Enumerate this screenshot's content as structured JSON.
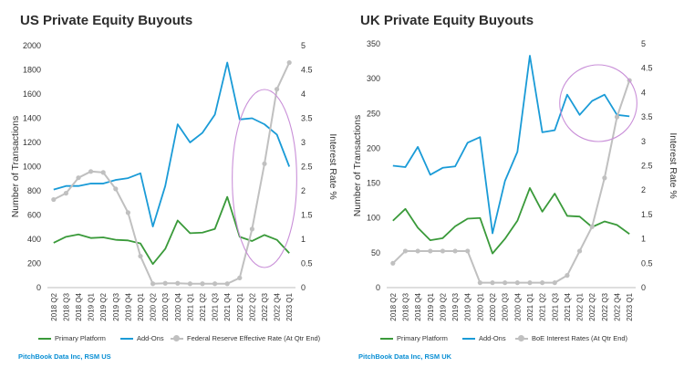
{
  "chart_data": [
    {
      "type": "line",
      "title": "US Private Equity Buyouts",
      "xlabel": "",
      "ylabel": "Number of Transactions",
      "ylabel_right": "Interest Rate %",
      "ylim": [
        0,
        2000
      ],
      "ylim_right": [
        0,
        5
      ],
      "yticks": [
        "0",
        "200",
        "400",
        "600",
        "800",
        "1000",
        "1200",
        "1400",
        "1600",
        "1800",
        "2000"
      ],
      "yticks_right": [
        "0",
        "0.5",
        "1",
        "1.5",
        "2",
        "2.5",
        "3",
        "3.5",
        "4",
        "4.5",
        "5"
      ],
      "categories": [
        "2018 Q2",
        "2018 Q3",
        "2018 Q4",
        "2019 Q1",
        "2019 Q2",
        "2019 Q3",
        "2019 Q4",
        "2020 Q1",
        "2020 Q2",
        "2020 Q3",
        "2020 Q4",
        "2021 Q1",
        "2021 Q2",
        "2021 Q3",
        "2021 Q4",
        "2022 Q1",
        "2022 Q2",
        "2022 Q3",
        "2022 Q4",
        "2023 Q1"
      ],
      "series": [
        {
          "name": "Primary Platform",
          "axis": "left",
          "color": "#3a9a3a",
          "marker": false,
          "values": [
            370,
            420,
            440,
            410,
            415,
            395,
            390,
            365,
            195,
            320,
            555,
            450,
            455,
            485,
            750,
            420,
            385,
            435,
            395,
            285
          ]
        },
        {
          "name": "Add-Ons",
          "axis": "left",
          "color": "#1a9bd7",
          "marker": false,
          "values": [
            810,
            840,
            840,
            860,
            860,
            890,
            905,
            945,
            505,
            840,
            1350,
            1200,
            1280,
            1430,
            1860,
            1390,
            1400,
            1350,
            1265,
            1000
          ]
        },
        {
          "name": "Federal Reserve Effective Rate (At Qtr End)",
          "axis": "right",
          "color": "#c0c0c0",
          "marker": true,
          "values": [
            1.82,
            1.95,
            2.27,
            2.4,
            2.38,
            2.04,
            1.55,
            0.65,
            0.08,
            0.09,
            0.09,
            0.08,
            0.08,
            0.08,
            0.08,
            0.2,
            1.21,
            2.56,
            4.1,
            4.65
          ]
        }
      ],
      "highlight_ellipse": {
        "color": "#c98fd8",
        "x_from": "2022 Q1",
        "x_to": "2023 Q1"
      },
      "source": "PitchBook Data Inc, RSM US"
    },
    {
      "type": "line",
      "title": "UK Private Equity Buyouts",
      "xlabel": "",
      "ylabel": "Number of Transactions",
      "ylabel_right": "Interest Rate %",
      "ylim": [
        0,
        350
      ],
      "ylim_right": [
        0,
        5
      ],
      "yticks": [
        "0",
        "50",
        "100",
        "150",
        "200",
        "250",
        "300",
        "350"
      ],
      "yticks_right": [
        "0",
        "0.5",
        "1",
        "1.5",
        "2",
        "2.5",
        "3",
        "3.5",
        "4",
        "4.5",
        "5"
      ],
      "categories": [
        "2018 Q2",
        "2018 Q3",
        "2018 Q4",
        "2019 Q1",
        "2019 Q2",
        "2019 Q3",
        "2019 Q4",
        "2020 Q1",
        "2020 Q2",
        "2020 Q3",
        "2020 Q4",
        "2021 Q1",
        "2021 Q2",
        "2021 Q3",
        "2021 Q4",
        "2022 Q1",
        "2022 Q2",
        "2022 Q3",
        "2022 Q4",
        "2023 Q1"
      ],
      "series": [
        {
          "name": "Primary Platform",
          "axis": "left",
          "color": "#3a9a3a",
          "marker": false,
          "values": [
            96,
            113,
            86,
            68,
            71,
            88,
            99,
            100,
            49,
            70,
            96,
            143,
            109,
            135,
            103,
            102,
            87,
            95,
            90,
            77
          ]
        },
        {
          "name": "Add-Ons",
          "axis": "left",
          "color": "#1a9bd7",
          "marker": false,
          "values": [
            175,
            173,
            202,
            162,
            172,
            174,
            208,
            216,
            78,
            153,
            195,
            333,
            223,
            226,
            277,
            248,
            268,
            277,
            248,
            246
          ]
        },
        {
          "name": "BoE Interest Rates (At Qtr End)",
          "axis": "right",
          "color": "#c0c0c0",
          "marker": true,
          "values": [
            0.5,
            0.75,
            0.75,
            0.75,
            0.75,
            0.75,
            0.75,
            0.1,
            0.1,
            0.1,
            0.1,
            0.1,
            0.1,
            0.1,
            0.25,
            0.75,
            1.25,
            2.25,
            3.5,
            4.25
          ]
        }
      ],
      "highlight_ellipse": {
        "color": "#c98fd8",
        "x_from": "2021 Q4",
        "x_to": "2023 Q1"
      },
      "source": "PitchBook Data Inc, RSM UK"
    }
  ]
}
